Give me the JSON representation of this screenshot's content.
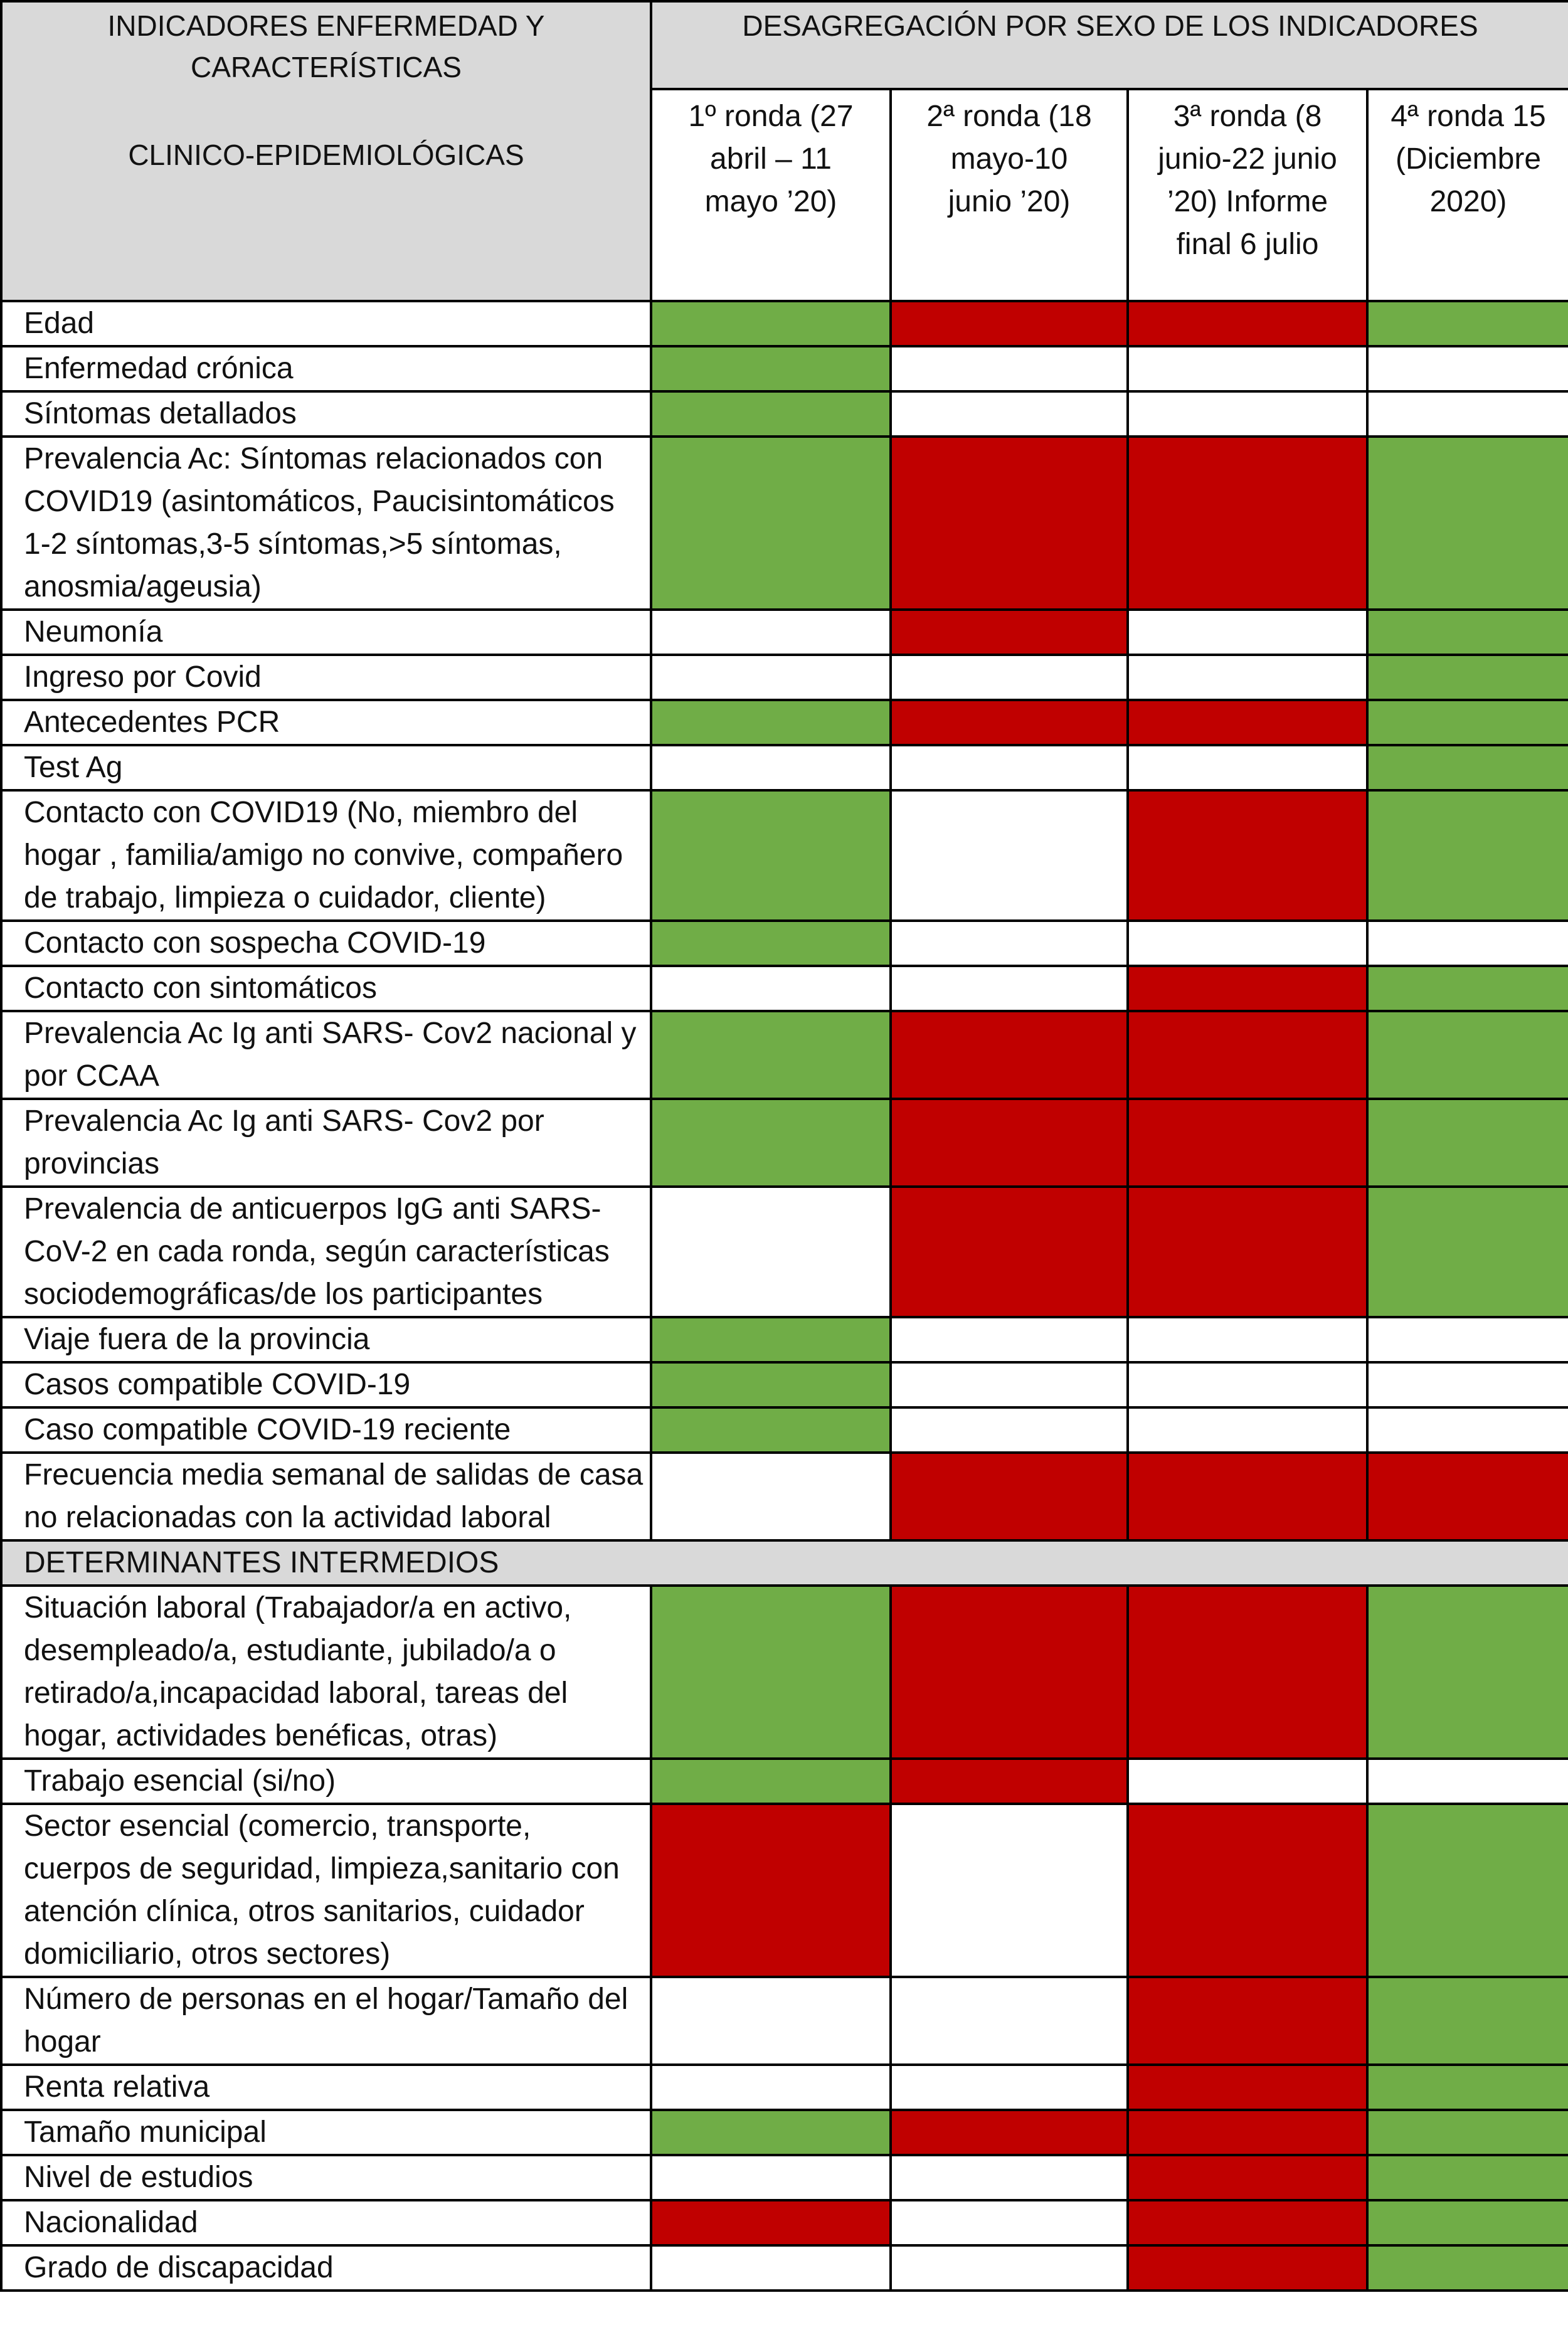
{
  "header": {
    "left_title": "INDICADORES ENFERMEDAD Y CARACTERÍSTICAS",
    "left_subtitle": "CLINICO-EPIDEMIOLÓGICAS",
    "right_title": "DESAGREGACIÓN POR SEXO DE LOS INDICADORES",
    "rounds": [
      "1º ronda (27 abril – 11 mayo ’20)",
      "2ª ronda (18 mayo-10 junio ’20)",
      "3ª ronda (8 junio-22 junio ’20) Informe final 6 julio",
      "4ª ronda 15 (Diciembre 2020)"
    ]
  },
  "colors": {
    "green": "#70ad47",
    "red": "#c00000",
    "white": "#ffffff",
    "header_gray": "#d9d9d9"
  },
  "section_clinical": {
    "rows": [
      {
        "label": "Edad",
        "cells": [
          "g",
          "r",
          "r",
          "g"
        ]
      },
      {
        "label": "Enfermedad crónica",
        "cells": [
          "g",
          "w",
          "w",
          "w"
        ]
      },
      {
        "label": "Síntomas detallados",
        "cells": [
          "g",
          "w",
          "w",
          "w"
        ]
      },
      {
        "label": "Prevalencia Ac: Síntomas relacionados con COVID19 (asintomáticos, Paucisintomáticos  1-2 síntomas,3-5 síntomas,>5 síntomas, anosmia/ageusia)",
        "cells": [
          "g",
          "r",
          "r",
          "g"
        ]
      },
      {
        "label": "Neumonía",
        "cells": [
          "w",
          "r",
          "w",
          "g"
        ]
      },
      {
        "label": "Ingreso por Covid",
        "cells": [
          "w",
          "w",
          "w",
          "g"
        ]
      },
      {
        "label": "Antecedentes PCR",
        "cells": [
          "g",
          "r",
          "r",
          "g"
        ]
      },
      {
        "label": "Test Ag",
        "cells": [
          "w",
          "w",
          "w",
          "g"
        ]
      },
      {
        "label": "Contacto con COVID19 (No, miembro del hogar , familia/amigo no convive, compañero de trabajo, limpieza o cuidador, cliente)",
        "cells": [
          "g",
          "w",
          "r",
          "g"
        ]
      },
      {
        "label": "Contacto con sospecha COVID-19",
        "cells": [
          "g",
          "w",
          "w",
          "w"
        ]
      },
      {
        "label": "Contacto con sintomáticos",
        "cells": [
          "w",
          "w",
          "r",
          "g"
        ]
      },
      {
        "label": "Prevalencia Ac Ig anti SARS- Cov2 nacional y por CCAA",
        "cells": [
          "g",
          "r",
          "r",
          "g"
        ]
      },
      {
        "label": "Prevalencia  Ac Ig anti SARS- Cov2 por provincias",
        "cells": [
          "g",
          "r",
          "r",
          "g"
        ]
      },
      {
        "label": "Prevalencia de anticuerpos IgG anti SARS-CoV-2 en cada ronda, según características sociodemográficas/de los participantes",
        "cells": [
          "w",
          "r",
          "r",
          "g"
        ]
      },
      {
        "label": "Viaje fuera de la provincia",
        "cells": [
          "g",
          "w",
          "w",
          "w"
        ]
      },
      {
        "label": "Casos compatible COVID-19",
        "cells": [
          "g",
          "w",
          "w",
          "w"
        ]
      },
      {
        "label": "Caso compatible COVID-19 reciente",
        "cells": [
          "g",
          "w",
          "w",
          "w"
        ]
      },
      {
        "label": "Frecuencia media semanal de salidas de casa no relacionadas con la actividad laboral",
        "cells": [
          "w",
          "r",
          "r",
          "r"
        ]
      }
    ]
  },
  "section_intermediate": {
    "title": "DETERMINANTES INTERMEDIOS",
    "rows": [
      {
        "label": "Situación laboral (Trabajador/a en activo, desempleado/a,  estudiante, jubilado/a o retirado/a,incapacidad laboral, tareas del hogar, actividades benéficas, otras)",
        "cells": [
          "g",
          "r",
          "r",
          "g"
        ]
      },
      {
        "label": "Trabajo esencial (si/no)",
        "cells": [
          "g",
          "r",
          "w",
          "w"
        ]
      },
      {
        "label": "Sector esencial (comercio, transporte, cuerpos de seguridad, limpieza,sanitario con atención clínica, otros sanitarios, cuidador domiciliario, otros sectores)",
        "cells": [
          "r",
          "w",
          "r",
          "g"
        ]
      },
      {
        "label": "Número de personas en el hogar/Tamaño del hogar",
        "cells": [
          "w",
          "w",
          "r",
          "g"
        ]
      },
      {
        "label": "Renta relativa",
        "cells": [
          "w",
          "w",
          "r",
          "g"
        ]
      },
      {
        "label": "Tamaño municipal",
        "cells": [
          "g",
          "r",
          "r",
          "g"
        ]
      },
      {
        "label": "Nivel de estudios",
        "cells": [
          "w",
          "w",
          "r",
          "g"
        ]
      },
      {
        "label": "Nacionalidad",
        "cells": [
          "r",
          "w",
          "r",
          "g"
        ]
      },
      {
        "label": "Grado de discapacidad",
        "cells": [
          "w",
          "w",
          "r",
          "g"
        ]
      }
    ]
  }
}
